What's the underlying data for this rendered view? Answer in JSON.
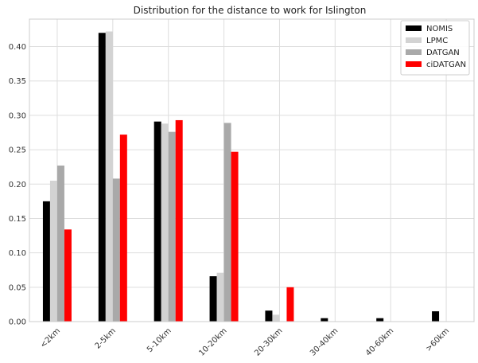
{
  "chart_data": {
    "type": "bar",
    "title": "Distribution for the distance to work for Islington",
    "xlabel": "",
    "ylabel": "",
    "categories": [
      "<2km",
      "2-5km",
      "5-10km",
      "10-20km",
      "20-30km",
      "30-40km",
      "40-60km",
      ">60km"
    ],
    "series": [
      {
        "name": "NOMIS",
        "color": "#000000",
        "values": [
          0.175,
          0.42,
          0.291,
          0.066,
          0.016,
          0.005,
          0.005,
          0.015
        ]
      },
      {
        "name": "LPMC",
        "color": "#d3d3d3",
        "values": [
          0.205,
          0.422,
          0.288,
          0.071,
          0.01,
          0.0,
          0.0,
          0.0
        ]
      },
      {
        "name": "DATGAN",
        "color": "#a9a9a9",
        "values": [
          0.227,
          0.208,
          0.276,
          0.289,
          0.0,
          0.0,
          0.0,
          0.0
        ]
      },
      {
        "name": "ciDATGAN",
        "color": "#ff0000",
        "values": [
          0.134,
          0.272,
          0.293,
          0.247,
          0.05,
          0.0,
          0.0,
          0.0
        ]
      }
    ],
    "ylim": [
      0,
      0.44
    ],
    "yticks": [
      0.0,
      0.05,
      0.1,
      0.15,
      0.2,
      0.25,
      0.3,
      0.35,
      0.4
    ],
    "ytick_labels": [
      "0.00",
      "0.05",
      "0.10",
      "0.15",
      "0.20",
      "0.25",
      "0.30",
      "0.35",
      "0.40"
    ],
    "grid": true,
    "legend_position": "top-right"
  }
}
